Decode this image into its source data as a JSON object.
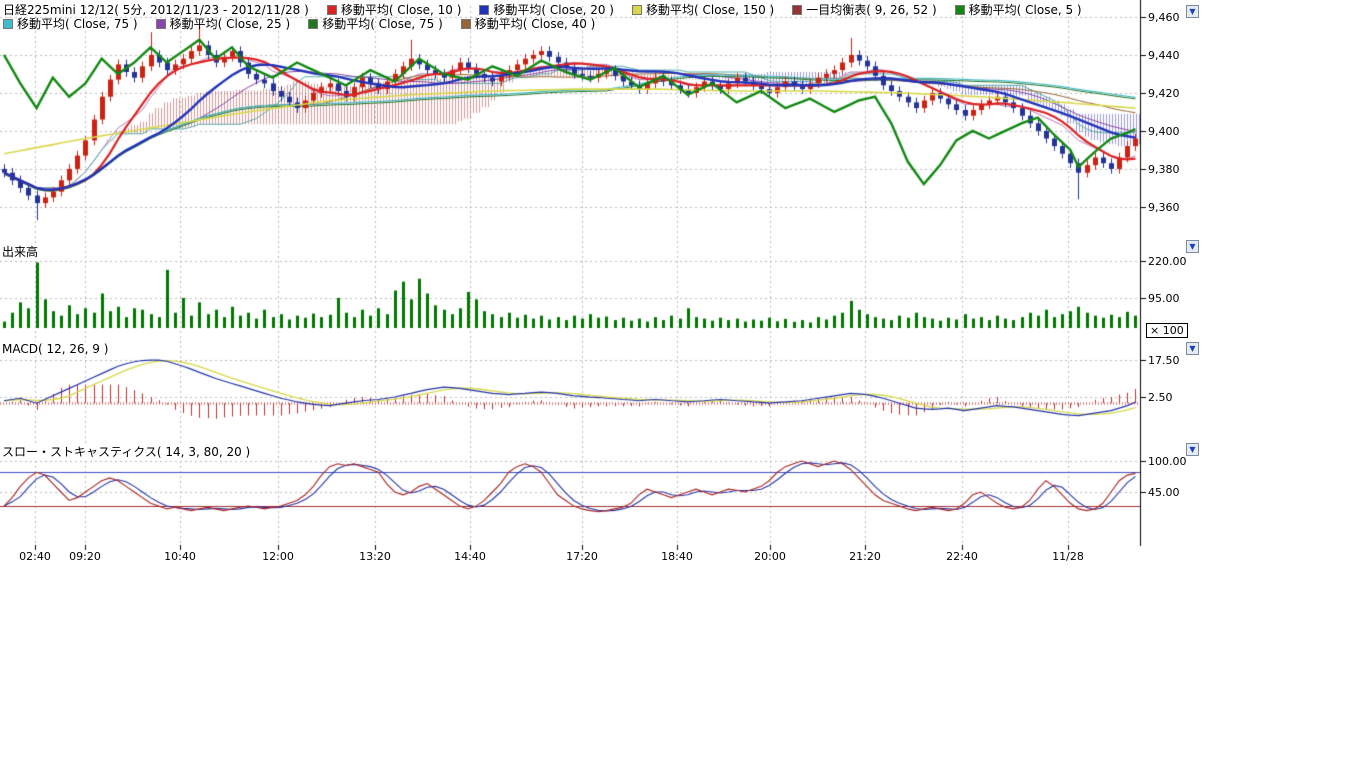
{
  "header": {
    "title": "日経225mini 12/12( 5分, 2012/11/23 - 2012/11/28 )",
    "legends_row1": [
      {
        "label": "移動平均( Close, 10 )",
        "color": "#dd2222"
      },
      {
        "label": "移動平均( Close, 20 )",
        "color": "#2233bb"
      },
      {
        "label": "移動平均( Close, 150 )",
        "color": "#d8d84a"
      },
      {
        "label": "一目均衡表( 9, 26, 52 )",
        "color": "#993333"
      },
      {
        "label": "移動平均( Close, 5 )",
        "color": "#118811"
      }
    ],
    "legends_row2": [
      {
        "label": "移動平均( Close, 75 )",
        "color": "#44bbcc"
      },
      {
        "label": "移動平均( Close, 25 )",
        "color": "#8844aa"
      },
      {
        "label": "移動平均( Close, 75 )",
        "color": "#227722"
      },
      {
        "label": "移動平均( Close, 40 )",
        "color": "#996633"
      }
    ]
  },
  "panels": {
    "volume_label": "出来高",
    "macd_label": "MACD( 12, 26, 9 )",
    "stoch_label": "スロー・ストキャスティクス( 14, 3, 80, 20 )",
    "volume_multiplier": "× 100"
  },
  "price_axis": [
    "9,460",
    "9,440",
    "9,420",
    "9,400",
    "9,380",
    "9,360"
  ],
  "volume_axis": [
    "220.00",
    "95.00"
  ],
  "macd_axis": [
    "17.50",
    "2.50"
  ],
  "stoch_axis": [
    "100.00",
    "45.00"
  ],
  "time_axis": [
    "02:40",
    "09:20",
    "10:40",
    "12:00",
    "13:20",
    "14:40",
    "17:20",
    "18:40",
    "20:00",
    "21:20",
    "22:40",
    "11/28"
  ],
  "icons": {
    "panel_scroll_arrow": "▼"
  },
  "chart_data": {
    "type": "candlestick",
    "panels": [
      "price",
      "volume",
      "macd",
      "slow-stochastics"
    ],
    "title": "日経225mini 12/12 5分足 2012/11/23 - 2012/11/28",
    "price_range": [
      9345,
      9469
    ],
    "price_gridlines": [
      9460,
      9440,
      9420,
      9400,
      9380,
      9360
    ],
    "time_gridline_x": [
      35,
      85,
      180,
      278,
      375,
      470,
      582,
      677,
      770,
      865,
      962,
      1068
    ],
    "up_color": "#cc2211",
    "down_color": "#223399",
    "closes": [
      9378,
      9374,
      9370,
      9366,
      9362,
      9365,
      9368,
      9374,
      9380,
      9387,
      9395,
      9406,
      9418,
      9427,
      9435,
      9431,
      9428,
      9434,
      9440,
      9436,
      9432,
      9435,
      9438,
      9442,
      9445,
      9440,
      9436,
      9439,
      9442,
      9436,
      9430,
      9427,
      9425,
      9421,
      9418,
      9415,
      9412,
      9416,
      9420,
      9423,
      9425,
      9421,
      9418,
      9423,
      9428,
      9425,
      9422,
      9426,
      9430,
      9434,
      9438,
      9435,
      9432,
      9430,
      9428,
      9432,
      9436,
      9433,
      9430,
      9428,
      9426,
      9429,
      9432,
      9435,
      9438,
      9440,
      9442,
      9439,
      9436,
      9433,
      9430,
      9429,
      9428,
      9430,
      9432,
      9429,
      9426,
      9424,
      9422,
      9425,
      9428,
      9426,
      9424,
      9422,
      9420,
      9423,
      9426,
      9424,
      9422,
      9425,
      9428,
      9426,
      9424,
      9422,
      9420,
      9423,
      9426,
      9424,
      9422,
      9425,
      9428,
      9430,
      9432,
      9436,
      9440,
      9437,
      9434,
      9429,
      9424,
      9421,
      9418,
      9415,
      9412,
      9416,
      9420,
      9417,
      9414,
      9411,
      9408,
      9411,
      9414,
      9416,
      9418,
      9415,
      9412,
      9408,
      9404,
      9400,
      9396,
      9392,
      9388,
      9383,
      9378,
      9382,
      9386,
      9383,
      9380,
      9386,
      9392,
      9396
    ],
    "wick_spikes": [
      {
        "i": 4,
        "low": 9353
      },
      {
        "i": 18,
        "high": 9452
      },
      {
        "i": 24,
        "high": 9455
      },
      {
        "i": 50,
        "high": 9448
      },
      {
        "i": 104,
        "high": 9449
      },
      {
        "i": 132,
        "low": 9364
      }
    ],
    "overlays": {
      "ma10": {
        "color": "#dd2222",
        "period": 10,
        "width": 2.2
      },
      "ma20": {
        "color": "#2233bb",
        "period": 20,
        "width": 2.4
      },
      "ma25": {
        "color": "#8844aa",
        "period": 25,
        "width": 1
      },
      "ma40": {
        "color": "#996633",
        "period": 40,
        "width": 1
      },
      "ma75": {
        "color": "#44bbcc",
        "period": 75,
        "width": 1.2
      },
      "ma75b": {
        "color": "#227722",
        "period": 75,
        "width": 1
      },
      "ma5_green": {
        "color": "#118811",
        "width": 2.4,
        "anchors": [
          [
            0,
            9440
          ],
          [
            2,
            9425
          ],
          [
            4,
            9412
          ],
          [
            6,
            9428
          ],
          [
            8,
            9418
          ],
          [
            10,
            9425
          ],
          [
            12,
            9438
          ],
          [
            14,
            9430
          ],
          [
            16,
            9436
          ],
          [
            18,
            9444
          ],
          [
            20,
            9436
          ],
          [
            22,
            9442
          ],
          [
            24,
            9448
          ],
          [
            26,
            9438
          ],
          [
            28,
            9444
          ],
          [
            30,
            9434
          ],
          [
            33,
            9428
          ],
          [
            36,
            9436
          ],
          [
            39,
            9430
          ],
          [
            42,
            9424
          ],
          [
            45,
            9432
          ],
          [
            48,
            9426
          ],
          [
            51,
            9438
          ],
          [
            54,
            9430
          ],
          [
            57,
            9427
          ],
          [
            60,
            9434
          ],
          [
            63,
            9429
          ],
          [
            66,
            9437
          ],
          [
            69,
            9431
          ],
          [
            72,
            9427
          ],
          [
            75,
            9433
          ],
          [
            78,
            9423
          ],
          [
            81,
            9429
          ],
          [
            84,
            9419
          ],
          [
            87,
            9425
          ],
          [
            90,
            9415
          ],
          [
            93,
            9421
          ],
          [
            96,
            9412
          ],
          [
            99,
            9417
          ],
          [
            102,
            9410
          ],
          [
            105,
            9416
          ],
          [
            107,
            9418
          ],
          [
            109,
            9404
          ],
          [
            111,
            9384
          ],
          [
            113,
            9372
          ],
          [
            115,
            9382
          ],
          [
            117,
            9395
          ],
          [
            119,
            9400
          ],
          [
            121,
            9396
          ],
          [
            123,
            9400
          ],
          [
            125,
            9404
          ],
          [
            127,
            9407
          ],
          [
            129,
            9398
          ],
          [
            131,
            9390
          ],
          [
            132,
            9381
          ],
          [
            134,
            9389
          ],
          [
            136,
            9396
          ],
          [
            138,
            9399
          ],
          [
            139,
            9401
          ]
        ]
      },
      "ma150_yellow": {
        "color": "#d8d84a",
        "width": 1.6,
        "anchors": [
          [
            0,
            9388
          ],
          [
            10,
            9396
          ],
          [
            20,
            9403
          ],
          [
            30,
            9410
          ],
          [
            40,
            9416
          ],
          [
            50,
            9419
          ],
          [
            60,
            9421
          ],
          [
            70,
            9422
          ],
          [
            80,
            9422
          ],
          [
            90,
            9421
          ],
          [
            100,
            9421
          ],
          [
            110,
            9420
          ],
          [
            120,
            9418
          ],
          [
            130,
            9415
          ],
          [
            139,
            9412
          ]
        ]
      },
      "ichimoku": {
        "params": [
          9,
          26,
          52
        ],
        "cloud_up_color": "rgba(170,60,60,0.5)",
        "cloud_down_color": "rgba(60,60,170,0.5)",
        "tenkan_color": "#bb77bb",
        "kijun_color": "#55aaaa"
      }
    },
    "volume": {
      "gridlines": [
        220,
        95
      ],
      "color": "#007700",
      "multiplier": 100,
      "values": [
        15,
        45,
        80,
        60,
        215,
        90,
        50,
        35,
        70,
        40,
        60,
        45,
        110,
        50,
        65,
        30,
        60,
        55,
        40,
        30,
        190,
        45,
        95,
        35,
        80,
        40,
        55,
        30,
        65,
        35,
        45,
        25,
        55,
        30,
        40,
        22,
        35,
        28,
        42,
        30,
        38,
        95,
        45,
        30,
        55,
        35,
        60,
        40,
        120,
        150,
        90,
        160,
        110,
        70,
        55,
        40,
        60,
        115,
        90,
        50,
        40,
        30,
        45,
        28,
        38,
        25,
        35,
        22,
        30,
        20,
        35,
        25,
        40,
        28,
        32,
        20,
        28,
        18,
        25,
        15,
        30,
        20,
        35,
        25,
        60,
        30,
        25,
        18,
        28,
        20,
        25,
        15,
        22,
        18,
        28,
        16,
        24,
        14,
        20,
        12,
        30,
        22,
        35,
        45,
        85,
        55,
        40,
        30,
        25,
        20,
        35,
        28,
        45,
        30,
        25,
        18,
        28,
        22,
        40,
        25,
        30,
        20,
        35,
        25,
        20,
        30,
        45,
        35,
        55,
        30,
        40,
        50,
        65,
        45,
        35,
        28,
        38,
        30,
        48,
        35
      ]
    },
    "macd": {
      "params": [
        12,
        26,
        9
      ],
      "gridlines": [
        17.5,
        2.5
      ],
      "line_color": "#2233aa",
      "signal_color": "#d8d84a",
      "hist_color": "#bb3333",
      "values": [
        1.0,
        1.5,
        2.0,
        1.0,
        0.0,
        1.5,
        3.0,
        4.5,
        6.0,
        7.5,
        9.0,
        10.5,
        12.0,
        13.5,
        15.0,
        16.0,
        16.8,
        17.3,
        17.5,
        17.5,
        17.0,
        16.0,
        15.0,
        13.8,
        12.5,
        11.3,
        10.0,
        9.0,
        8.0,
        7.0,
        6.0,
        5.0,
        4.0,
        3.0,
        2.0,
        1.3,
        0.5,
        0.0,
        -0.5,
        -0.8,
        -1.0,
        -0.5,
        0.0,
        0.5,
        1.0,
        1.3,
        1.5,
        2.0,
        2.5,
        3.3,
        4.0,
        4.8,
        5.5,
        6.0,
        6.5,
        6.3,
        6.0,
        5.5,
        5.0,
        4.5,
        4.0,
        3.8,
        3.5,
        3.8,
        4.0,
        4.3,
        4.5,
        4.3,
        4.0,
        3.5,
        3.0,
        2.8,
        2.5,
        2.3,
        2.0,
        1.8,
        1.5,
        1.3,
        1.0,
        1.3,
        1.5,
        1.3,
        1.0,
        0.8,
        0.5,
        0.8,
        1.0,
        1.3,
        1.5,
        1.3,
        1.0,
        0.8,
        0.5,
        0.3,
        0.0,
        0.3,
        0.5,
        0.8,
        1.0,
        1.5,
        2.0,
        2.5,
        3.0,
        3.5,
        4.0,
        3.8,
        3.5,
        2.8,
        2.0,
        1.0,
        0.0,
        -1.0,
        -2.0,
        -2.3,
        -2.5,
        -2.3,
        -2.0,
        -2.5,
        -3.0,
        -2.5,
        -2.0,
        -1.5,
        -1.0,
        -1.3,
        -1.5,
        -2.0,
        -2.5,
        -3.0,
        -3.5,
        -4.0,
        -4.5,
        -4.8,
        -5.0,
        -4.5,
        -4.0,
        -3.5,
        -3.0,
        -2.0,
        -1.0,
        0.5
      ]
    },
    "stoch": {
      "params": [
        14,
        3,
        80,
        20
      ],
      "gridlines": [
        100,
        45
      ],
      "upper_band": 80,
      "lower_band": 20,
      "k_color": "#aa2222",
      "d_color": "#2233aa",
      "band_upper_color": "#3b4fc0",
      "band_lower_color": "#a03030",
      "k_values": [
        20,
        35,
        55,
        70,
        80,
        75,
        60,
        45,
        30,
        35,
        45,
        55,
        65,
        70,
        65,
        55,
        45,
        35,
        25,
        20,
        15,
        18,
        15,
        12,
        15,
        18,
        15,
        12,
        15,
        18,
        20,
        18,
        15,
        18,
        20,
        25,
        30,
        40,
        55,
        75,
        90,
        95,
        92,
        95,
        90,
        85,
        80,
        60,
        45,
        40,
        45,
        55,
        60,
        50,
        40,
        30,
        20,
        15,
        20,
        30,
        45,
        60,
        80,
        90,
        95,
        90,
        80,
        60,
        40,
        30,
        20,
        15,
        12,
        10,
        12,
        15,
        18,
        25,
        40,
        50,
        45,
        40,
        35,
        40,
        45,
        50,
        45,
        40,
        45,
        50,
        48,
        45,
        50,
        55,
        65,
        80,
        90,
        95,
        100,
        95,
        90,
        95,
        100,
        95,
        85,
        70,
        55,
        40,
        30,
        25,
        20,
        15,
        12,
        15,
        18,
        15,
        12,
        15,
        25,
        40,
        45,
        35,
        25,
        18,
        15,
        18,
        30,
        50,
        65,
        55,
        40,
        25,
        15,
        12,
        15,
        25,
        45,
        65,
        75,
        78
      ]
    }
  }
}
